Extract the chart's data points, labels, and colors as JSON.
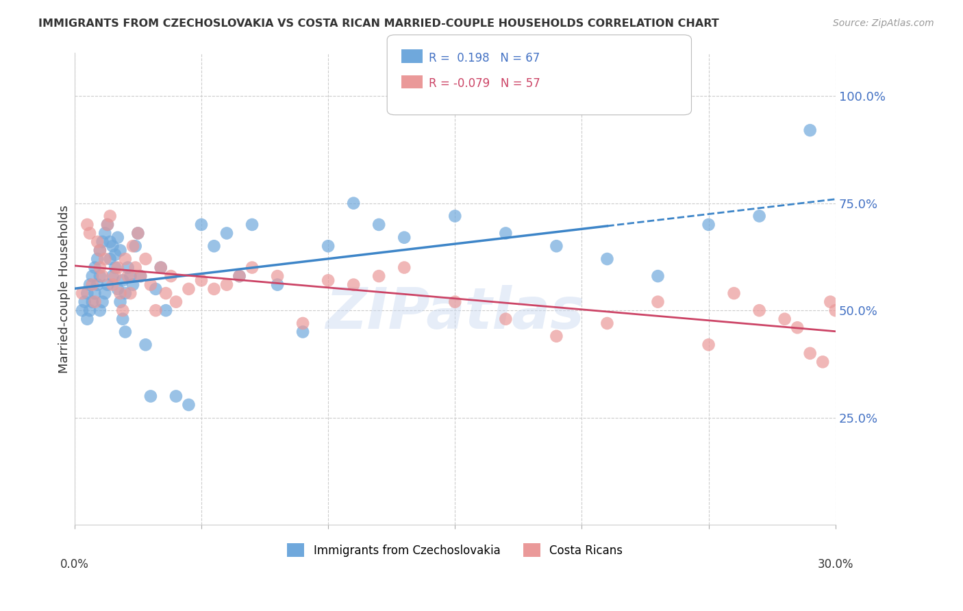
{
  "title": "IMMIGRANTS FROM CZECHOSLOVAKIA VS COSTA RICAN MARRIED-COUPLE HOUSEHOLDS CORRELATION CHART",
  "source": "Source: ZipAtlas.com",
  "ylabel": "Married-couple Households",
  "ytick_labels": [
    "100.0%",
    "75.0%",
    "50.0%",
    "25.0%"
  ],
  "ytick_values": [
    1.0,
    0.75,
    0.5,
    0.25
  ],
  "xmin": 0.0,
  "xmax": 0.3,
  "ymin": 0.0,
  "ymax": 1.1,
  "legend_label_blue": "Immigrants from Czechoslovakia",
  "legend_label_pink": "Costa Ricans",
  "blue_color": "#6fa8dc",
  "pink_color": "#ea9999",
  "blue_line_color": "#3d85c8",
  "pink_line_color": "#cc4466",
  "watermark": "ZIPatlas",
  "blue_scatter_x": [
    0.003,
    0.004,
    0.005,
    0.005,
    0.006,
    0.006,
    0.007,
    0.007,
    0.008,
    0.008,
    0.009,
    0.009,
    0.01,
    0.01,
    0.01,
    0.011,
    0.011,
    0.012,
    0.012,
    0.013,
    0.013,
    0.014,
    0.014,
    0.015,
    0.015,
    0.016,
    0.016,
    0.017,
    0.017,
    0.018,
    0.018,
    0.019,
    0.019,
    0.02,
    0.02,
    0.021,
    0.022,
    0.023,
    0.024,
    0.025,
    0.026,
    0.028,
    0.03,
    0.032,
    0.034,
    0.036,
    0.04,
    0.045,
    0.05,
    0.055,
    0.06,
    0.065,
    0.07,
    0.08,
    0.09,
    0.1,
    0.11,
    0.12,
    0.13,
    0.15,
    0.17,
    0.19,
    0.21,
    0.23,
    0.25,
    0.27,
    0.29
  ],
  "blue_scatter_y": [
    0.5,
    0.52,
    0.48,
    0.54,
    0.56,
    0.5,
    0.58,
    0.52,
    0.6,
    0.54,
    0.62,
    0.56,
    0.64,
    0.58,
    0.5,
    0.66,
    0.52,
    0.68,
    0.54,
    0.7,
    0.56,
    0.62,
    0.66,
    0.58,
    0.65,
    0.6,
    0.63,
    0.55,
    0.67,
    0.52,
    0.64,
    0.57,
    0.48,
    0.54,
    0.45,
    0.6,
    0.58,
    0.56,
    0.65,
    0.68,
    0.58,
    0.42,
    0.3,
    0.55,
    0.6,
    0.5,
    0.3,
    0.28,
    0.7,
    0.65,
    0.68,
    0.58,
    0.7,
    0.56,
    0.45,
    0.65,
    0.75,
    0.7,
    0.67,
    0.72,
    0.68,
    0.65,
    0.62,
    0.58,
    0.7,
    0.72,
    0.92
  ],
  "pink_scatter_x": [
    0.003,
    0.005,
    0.006,
    0.007,
    0.008,
    0.009,
    0.01,
    0.01,
    0.011,
    0.012,
    0.013,
    0.014,
    0.015,
    0.016,
    0.017,
    0.018,
    0.019,
    0.02,
    0.021,
    0.022,
    0.023,
    0.024,
    0.025,
    0.026,
    0.028,
    0.03,
    0.032,
    0.034,
    0.036,
    0.038,
    0.04,
    0.045,
    0.05,
    0.055,
    0.06,
    0.065,
    0.07,
    0.08,
    0.09,
    0.1,
    0.11,
    0.12,
    0.13,
    0.15,
    0.17,
    0.19,
    0.21,
    0.23,
    0.25,
    0.26,
    0.27,
    0.28,
    0.285,
    0.29,
    0.295,
    0.298,
    0.3
  ],
  "pink_scatter_y": [
    0.54,
    0.7,
    0.68,
    0.56,
    0.52,
    0.66,
    0.6,
    0.64,
    0.58,
    0.62,
    0.7,
    0.72,
    0.56,
    0.58,
    0.6,
    0.54,
    0.5,
    0.62,
    0.58,
    0.54,
    0.65,
    0.6,
    0.68,
    0.58,
    0.62,
    0.56,
    0.5,
    0.6,
    0.54,
    0.58,
    0.52,
    0.55,
    0.57,
    0.55,
    0.56,
    0.58,
    0.6,
    0.58,
    0.47,
    0.57,
    0.56,
    0.58,
    0.6,
    0.52,
    0.48,
    0.44,
    0.47,
    0.52,
    0.42,
    0.54,
    0.5,
    0.48,
    0.46,
    0.4,
    0.38,
    0.52,
    0.5
  ]
}
